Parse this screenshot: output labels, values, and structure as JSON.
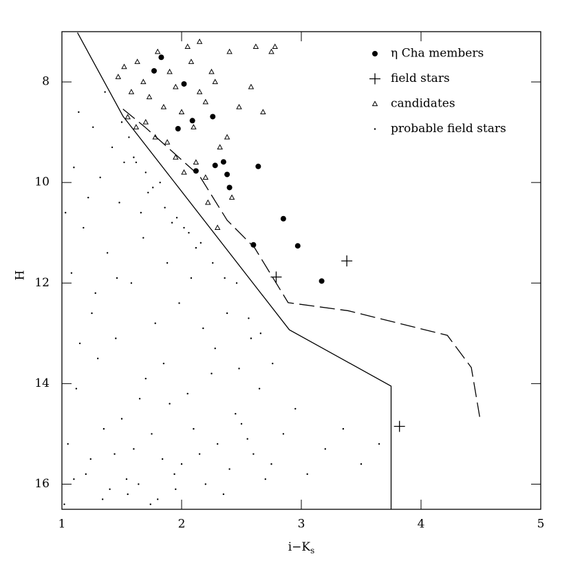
{
  "chart_data": {
    "type": "scatter",
    "xlabel": {
      "text": "i−K",
      "subscript": "s"
    },
    "ylabel": "H",
    "xlim": [
      1,
      5
    ],
    "xticks": [
      1,
      2,
      3,
      4,
      5
    ],
    "ylim": [
      7,
      16.5
    ],
    "yticks": [
      8,
      10,
      12,
      14,
      16
    ],
    "y_inverted": true,
    "legend": "upper right",
    "series": [
      {
        "name": "η Cha members",
        "marker": "filled-circle",
        "color": "#000000",
        "x": [
          1.83,
          1.77,
          2.02,
          2.26,
          1.97,
          2.09,
          2.12,
          2.28,
          2.35,
          2.38,
          2.4,
          2.64,
          2.85,
          2.6,
          2.97,
          3.17
        ],
        "y": [
          7.51,
          7.78,
          8.04,
          8.69,
          8.93,
          8.77,
          9.77,
          9.66,
          9.59,
          9.84,
          10.1,
          9.68,
          10.72,
          11.24,
          11.26,
          11.96
        ]
      },
      {
        "name": "field stars",
        "marker": "plus",
        "color": "#000000",
        "x": [
          2.79,
          3.38,
          3.82
        ],
        "y": [
          11.88,
          11.56,
          14.85
        ]
      },
      {
        "name": "candidates",
        "marker": "triangle",
        "color": "#000000",
        "x": [
          1.47,
          1.52,
          1.58,
          1.63,
          1.68,
          1.73,
          1.8,
          1.85,
          1.9,
          1.95,
          2.0,
          2.05,
          2.1,
          2.15,
          2.2,
          2.28,
          2.32,
          2.4,
          2.48,
          2.58,
          2.62,
          2.68,
          2.75,
          2.78,
          2.12,
          2.2,
          1.55,
          1.62,
          1.7,
          1.78,
          1.88,
          1.95,
          2.02,
          2.08,
          2.15,
          2.22,
          2.3,
          2.38,
          2.42,
          2.25
        ],
        "y": [
          7.9,
          7.7,
          8.2,
          7.6,
          8.0,
          8.3,
          7.4,
          8.5,
          7.8,
          8.1,
          8.6,
          7.3,
          8.9,
          7.2,
          8.4,
          8.0,
          9.3,
          7.4,
          8.5,
          8.1,
          7.3,
          8.6,
          7.4,
          7.3,
          9.6,
          9.9,
          8.7,
          8.9,
          8.8,
          9.1,
          9.2,
          9.5,
          9.8,
          7.6,
          8.2,
          10.4,
          10.9,
          9.1,
          10.3,
          7.8
        ]
      },
      {
        "name": "probable field stars",
        "marker": "dot",
        "color": "#000000",
        "x": [
          1.05,
          1.12,
          1.2,
          1.3,
          1.4,
          1.5,
          1.6,
          1.7,
          1.8,
          1.9,
          2.0,
          2.1,
          2.2,
          2.3,
          2.4,
          2.5,
          2.6,
          2.7,
          1.15,
          1.25,
          1.35,
          1.45,
          1.55,
          1.65,
          1.75,
          1.85,
          1.95,
          2.05,
          2.15,
          2.25,
          2.35,
          2.45,
          2.55,
          2.65,
          2.75,
          2.85,
          2.95,
          3.05,
          3.2,
          3.35,
          3.5,
          3.65,
          1.08,
          1.18,
          1.28,
          1.38,
          1.48,
          1.58,
          1.68,
          1.78,
          1.88,
          1.98,
          2.08,
          2.18,
          2.28,
          2.38,
          2.48,
          2.58,
          1.1,
          1.22,
          1.32,
          1.42,
          1.52,
          1.62,
          1.72,
          1.82,
          1.92,
          2.02,
          2.12,
          1.03,
          1.14,
          1.26,
          1.36,
          1.46,
          1.56,
          1.66,
          1.76,
          1.86,
          1.96,
          2.06,
          2.16,
          2.26,
          2.36,
          2.46,
          2.56,
          2.66,
          2.76,
          1.5,
          1.6,
          1.7,
          1.02,
          1.1,
          1.24,
          1.34,
          1.44,
          1.54,
          1.64,
          1.74,
          1.84,
          1.94
        ],
        "y": [
          15.2,
          14.1,
          15.8,
          13.5,
          16.1,
          14.7,
          15.3,
          13.9,
          16.3,
          14.4,
          15.6,
          14.9,
          16.0,
          15.2,
          15.7,
          14.8,
          15.4,
          15.9,
          13.2,
          12.6,
          14.9,
          13.1,
          16.2,
          14.3,
          15.0,
          13.6,
          16.1,
          14.2,
          15.4,
          13.8,
          16.2,
          14.6,
          15.1,
          14.1,
          15.6,
          15.0,
          14.5,
          15.8,
          15.3,
          14.9,
          15.6,
          15.2,
          11.8,
          10.9,
          12.2,
          11.4,
          10.4,
          12.0,
          11.1,
          12.8,
          11.6,
          12.4,
          11.9,
          12.9,
          13.3,
          12.6,
          13.7,
          13.1,
          9.7,
          10.3,
          9.9,
          9.3,
          9.6,
          9.6,
          10.2,
          10.0,
          10.8,
          10.9,
          11.3,
          10.6,
          8.6,
          8.9,
          8.2,
          11.9,
          9.1,
          10.6,
          10.1,
          10.5,
          10.7,
          11.0,
          11.2,
          11.6,
          11.9,
          12.0,
          12.7,
          13.0,
          13.6,
          8.8,
          9.5,
          9.8,
          16.4,
          15.9,
          15.5,
          16.3,
          15.4,
          15.9,
          16.0,
          16.4,
          15.5,
          15.8
        ]
      },
      {
        "marker": "line",
        "dash": false,
        "color": "#000000",
        "x": [
          1.13,
          1.51,
          2.9,
          3.75,
          3.75
        ],
        "y": [
          7.02,
          8.68,
          12.93,
          14.05,
          16.5
        ]
      },
      {
        "marker": "line",
        "dash": true,
        "color": "#000000",
        "x": [
          1.51,
          1.69,
          2.15,
          2.38,
          2.61,
          2.89,
          3.39,
          4.22,
          4.42,
          4.49
        ],
        "y": [
          8.54,
          8.89,
          9.87,
          10.75,
          11.3,
          12.39,
          12.55,
          13.04,
          13.68,
          14.66
        ]
      }
    ]
  }
}
